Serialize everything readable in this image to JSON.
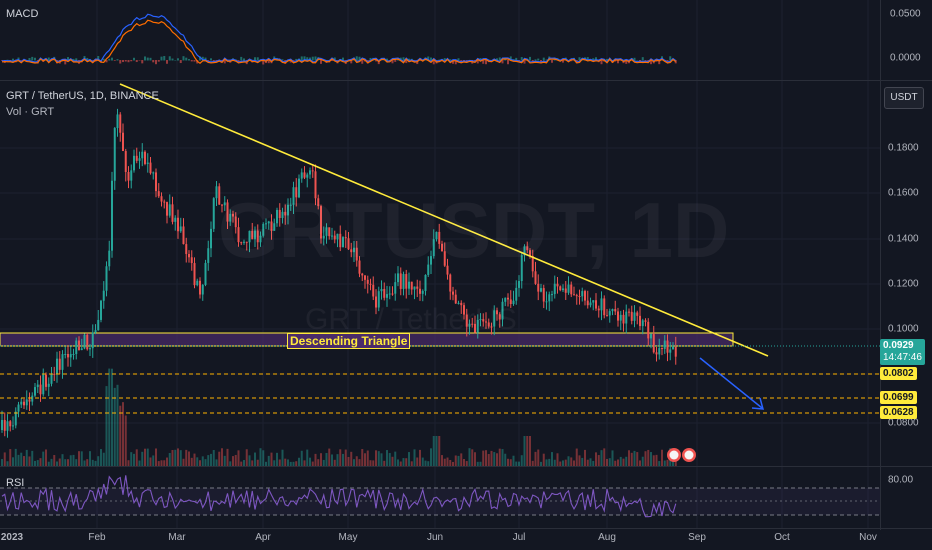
{
  "macd_pane": {
    "title": "MACD",
    "axis_labels": [
      "0.0500",
      "0.0000"
    ]
  },
  "main_pane": {
    "symbol_title": "GRT / TetherUS, 1D, BINANCE",
    "volume_title": "Vol · GRT",
    "currency_button": "USDT",
    "watermark_large": "GRTUSDT, 1D",
    "watermark_small": "GRT / TetherUS",
    "axis_labels": [
      "0.1800",
      "0.1600",
      "0.1400",
      "0.1200",
      "0.1000",
      "0.0800"
    ],
    "price_tag": "0.0929",
    "countdown": "14:47:46",
    "level_tags": [
      "0.0802",
      "0.0699",
      "0.0628"
    ],
    "pattern_label": "Descending Triangle"
  },
  "rsi_pane": {
    "title": "RSI",
    "axis_labels": [
      "80.00"
    ]
  },
  "time_axis": [
    "2023",
    "Feb",
    "Mar",
    "Apr",
    "May",
    "Jun",
    "Jul",
    "Aug",
    "Sep",
    "Oct",
    "Nov"
  ],
  "colors": {
    "background": "#131722",
    "up": "#26a69a",
    "down": "#ef5350",
    "trendline": "#ffeb3b",
    "zone": "#4a2b6a",
    "macd": "#2962ff",
    "signal": "#ff6d00",
    "rsi": "#7e57c2",
    "arrow": "#2962ff"
  }
}
